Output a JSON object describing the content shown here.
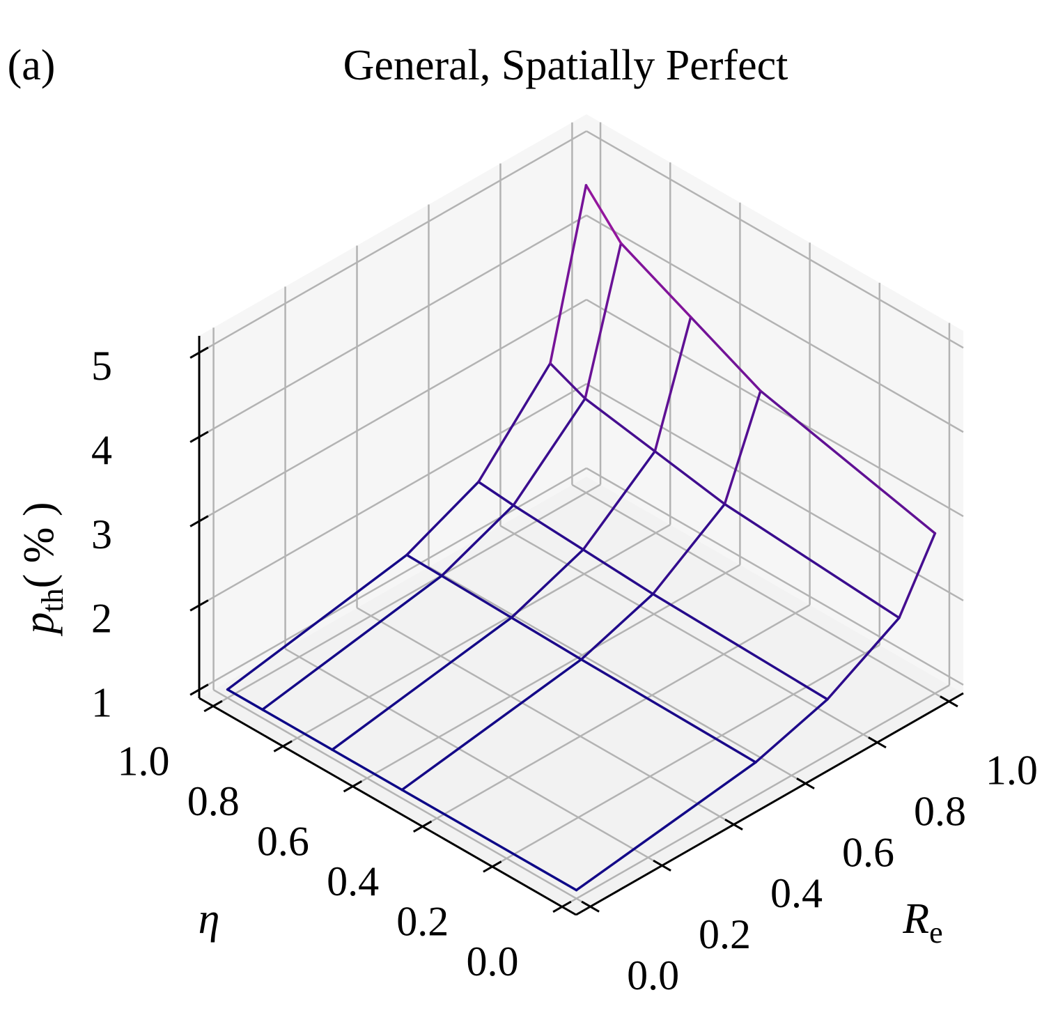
{
  "panel_label": "(a)",
  "chart_data": {
    "type": "wireframe3d",
    "title": "General, Spatially Perfect",
    "xlabel": [
      "R",
      "e"
    ],
    "ylabel": "η",
    "zlabel": [
      "p",
      "th",
      "( % )"
    ],
    "x": [
      0,
      0.5,
      0.7,
      0.9,
      1.0
    ],
    "y": [
      0,
      0.5,
      0.7,
      0.9,
      1.0
    ],
    "z": [
      [
        1.0,
        1.3,
        1.56,
        2.04,
        2.8
      ],
      [
        1.0,
        1.33,
        1.62,
        2.2,
        3.3
      ],
      [
        1.0,
        1.35,
        1.67,
        2.35,
        3.7
      ],
      [
        1.0,
        1.37,
        1.72,
        2.5,
        4.1
      ],
      [
        1.0,
        1.38,
        1.76,
        2.68,
        4.55
      ]
    ],
    "colormap": [
      "#0d0887",
      "#9c179e"
    ],
    "xlim": [
      -0.04,
      1.04
    ],
    "ylim": [
      -0.04,
      1.04
    ],
    "zlim": [
      0.9,
      5.2
    ],
    "xticks": [
      {
        "value": 0,
        "label": "0.0"
      },
      {
        "value": 0.2,
        "label": "0.2"
      },
      {
        "value": 0.4,
        "label": "0.4"
      },
      {
        "value": 0.6,
        "label": "0.6"
      },
      {
        "value": 0.8,
        "label": "0.8"
      },
      {
        "value": 1,
        "label": "1.0"
      }
    ],
    "yticks": [
      {
        "value": 0,
        "label": "0.0"
      },
      {
        "value": 0.2,
        "label": "0.2"
      },
      {
        "value": 0.4,
        "label": "0.4"
      },
      {
        "value": 0.6,
        "label": "0.6"
      },
      {
        "value": 0.8,
        "label": "0.8"
      },
      {
        "value": 1,
        "label": "1.0"
      }
    ],
    "zticks": [
      1,
      2,
      3,
      4,
      5
    ],
    "grid": true
  }
}
